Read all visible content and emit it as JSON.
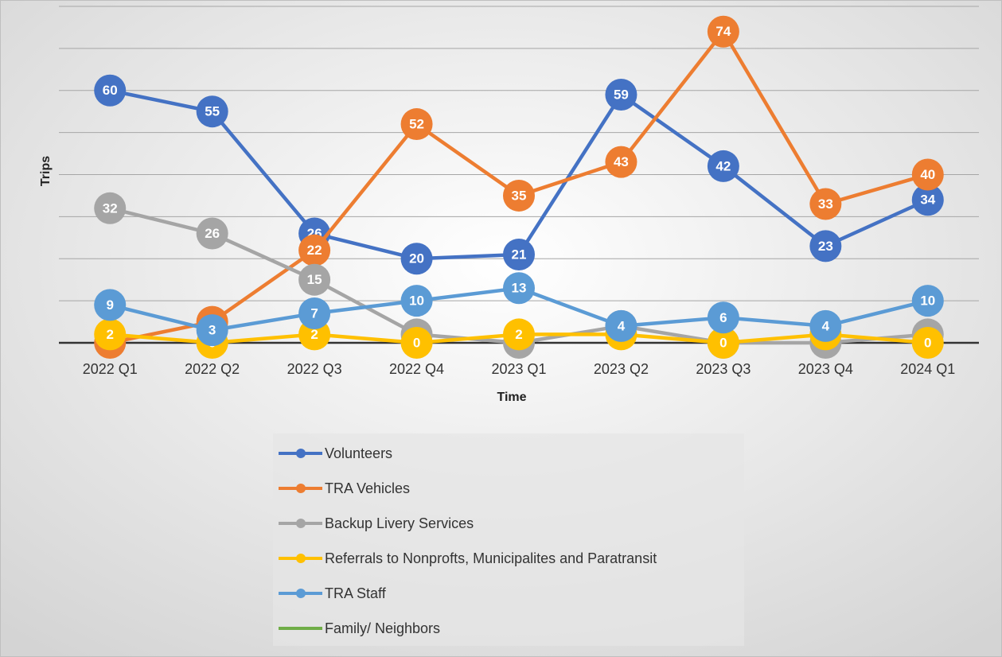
{
  "chart_data": {
    "type": "line",
    "x_label": "Time",
    "y_label": "Trips",
    "categories": [
      "2022 Q1",
      "2022 Q2",
      "2022 Q3",
      "2022 Q4",
      "2023 Q1",
      "2023 Q2",
      "2023 Q3",
      "2023 Q4",
      "2024 Q1"
    ],
    "series": [
      {
        "name": "Volunteers",
        "color": "#4472c4",
        "values": [
          60,
          55,
          26,
          20,
          21,
          59,
          42,
          23,
          34
        ]
      },
      {
        "name": "TRA Vehicles",
        "color": "#ed7d31",
        "values": [
          0,
          5,
          22,
          52,
          35,
          43,
          74,
          33,
          40
        ]
      },
      {
        "name": "Backup Livery Services",
        "color": "#a5a5a5",
        "values": [
          32,
          26,
          15,
          2,
          0,
          4,
          0,
          0,
          2
        ]
      },
      {
        "name": "Referrals to Nonprofts, Municipalites and Paratransit",
        "color": "#ffc000",
        "values": [
          2,
          0,
          2,
          0,
          2,
          2,
          0,
          2,
          0
        ]
      },
      {
        "name": "TRA Staff",
        "color": "#5b9bd5",
        "values": [
          9,
          3,
          7,
          10,
          13,
          4,
          6,
          4,
          10
        ]
      },
      {
        "name": "Family/ Neighbors",
        "color": "#70ad47",
        "values": [
          null,
          null,
          null,
          null,
          null,
          null,
          null,
          null,
          null
        ]
      }
    ],
    "ylim": [
      0,
      80
    ],
    "yticks": [
      0,
      10,
      20,
      30,
      40,
      50,
      60,
      70,
      80
    ],
    "grid": true,
    "legend": "bottom"
  }
}
